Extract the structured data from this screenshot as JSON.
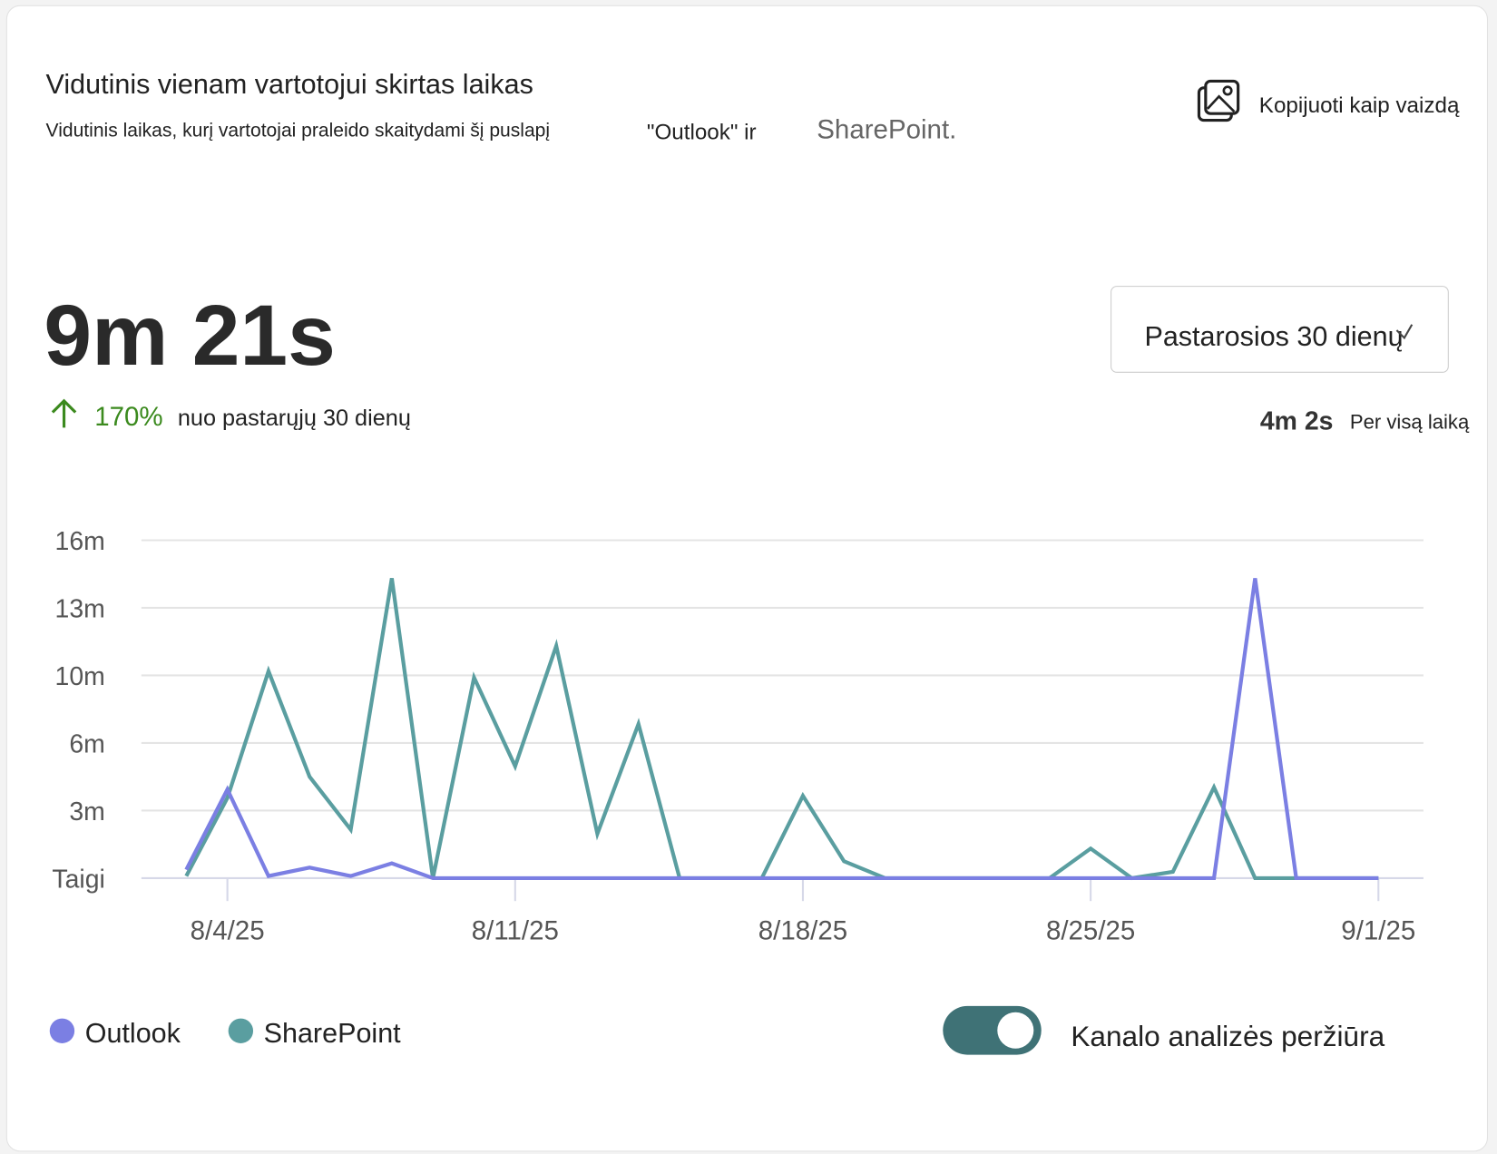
{
  "header": {
    "title": "Vidutinis vienam vartotojui skirtas laikas",
    "subtitle": "Vidutinis laikas, kurį vartotojai praleido skaitydami šį puslapį",
    "subtitle_outlook": "\"Outlook\" ir",
    "subtitle_sharepoint": "SharePoint.",
    "copy_button": "Kopijuoti kaip vaizdą"
  },
  "metric": {
    "value": "9m 21s",
    "change": "170%",
    "change_text": "nuo pastarųjų 30 dienų"
  },
  "dropdown": "Pastarosios 30 dienų",
  "all_time": {
    "value": "4m 2s",
    "label": "Per visą laiką"
  },
  "toggle_label": "Kanalo analizės peržiūra",
  "chart_data": {
    "type": "line",
    "categories": [
      null,
      "8/4/25",
      null,
      null,
      null,
      null,
      null,
      null,
      "8/11/25",
      null,
      null,
      null,
      null,
      null,
      null,
      "8/18/25",
      null,
      null,
      null,
      null,
      null,
      null,
      "8/25/25",
      null,
      null,
      null,
      null,
      null,
      null,
      "9/1/25"
    ],
    "series": [
      {
        "name": "Outlook",
        "color": "#7b7fe3",
        "values": [
          0.4,
          4.2,
          0.1,
          0.5,
          0.1,
          0.7,
          0,
          0,
          0,
          0,
          0,
          0,
          0,
          0,
          0,
          0,
          0,
          0,
          0,
          0,
          0,
          0,
          0,
          0,
          0,
          0,
          14.2,
          0,
          0,
          0
        ]
      },
      {
        "name": "SharePoint",
        "color": "#5a9ea0",
        "values": [
          0.1,
          3.8,
          9.8,
          4.8,
          2.3,
          14.2,
          0,
          9.5,
          5.3,
          11,
          2.1,
          7.3,
          0,
          0,
          0,
          3.9,
          0.8,
          0,
          0,
          0,
          0,
          0,
          1.4,
          0,
          0.3,
          4.3,
          0,
          0,
          0,
          0
        ]
      }
    ],
    "ylim": [
      0,
      16
    ],
    "yticks": [
      {
        "value": 0,
        "label": "Taigi"
      },
      {
        "value": 3.2,
        "label": "3m"
      },
      {
        "value": 6.4,
        "label": "6m"
      },
      {
        "value": 9.6,
        "label": "10m"
      },
      {
        "value": 12.8,
        "label": "13m"
      },
      {
        "value": 16,
        "label": "16m"
      }
    ],
    "grid": true
  }
}
